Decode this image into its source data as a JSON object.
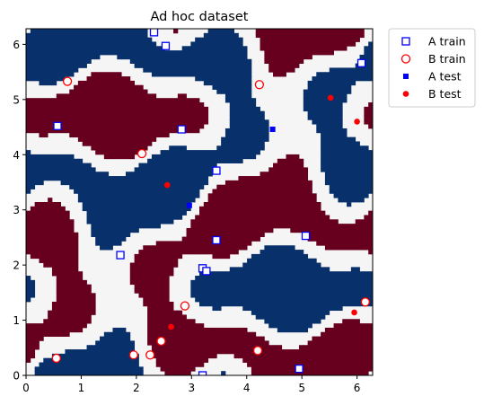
{
  "chart_data": {
    "type": "scatter",
    "title": "Ad hoc dataset",
    "xlabel": "",
    "ylabel": "",
    "xlim": [
      0,
      6.283
    ],
    "ylim": [
      0,
      6.283
    ],
    "xticks": [
      0,
      1,
      2,
      3,
      4,
      5,
      6
    ],
    "yticks": [
      0,
      1,
      2,
      3,
      4,
      5,
      6
    ],
    "grid": false,
    "legend_position": "outside-top-right",
    "background": {
      "type": "heatmap",
      "description_colors": {
        "class_a_region": "#08306b",
        "class_b_region": "#67001f",
        "neutral": "#f5f5f5"
      }
    },
    "series": [
      {
        "name": "A train",
        "marker": "open-square",
        "color": "#0000ff",
        "points": [
          [
            2.32,
            6.22
          ],
          [
            2.53,
            5.97
          ],
          [
            6.08,
            5.66
          ],
          [
            0.57,
            4.52
          ],
          [
            2.82,
            4.46
          ],
          [
            3.45,
            3.71
          ],
          [
            3.45,
            2.45
          ],
          [
            5.07,
            2.53
          ],
          [
            1.71,
            2.18
          ],
          [
            3.2,
            1.94
          ],
          [
            3.27,
            1.89
          ],
          [
            4.95,
            0.12
          ],
          [
            3.2,
            0.0
          ]
        ]
      },
      {
        "name": "B train",
        "marker": "open-circle",
        "color": "#ff0000",
        "points": [
          [
            0.75,
            5.33
          ],
          [
            4.23,
            5.27
          ],
          [
            2.1,
            4.02
          ],
          [
            2.88,
            1.26
          ],
          [
            6.15,
            1.33
          ],
          [
            2.45,
            0.62
          ],
          [
            1.95,
            0.37
          ],
          [
            2.25,
            0.37
          ],
          [
            4.2,
            0.45
          ],
          [
            0.55,
            0.31
          ]
        ]
      },
      {
        "name": "A test",
        "marker": "filled-square",
        "color": "#0000ff",
        "points": [
          [
            4.47,
            4.46
          ],
          [
            2.96,
            3.08
          ]
        ]
      },
      {
        "name": "B test",
        "marker": "filled-circle",
        "color": "#ff0000",
        "points": [
          [
            5.52,
            5.03
          ],
          [
            6.0,
            4.6
          ],
          [
            2.56,
            3.45
          ],
          [
            2.63,
            0.88
          ],
          [
            5.95,
            1.14
          ]
        ]
      }
    ]
  }
}
